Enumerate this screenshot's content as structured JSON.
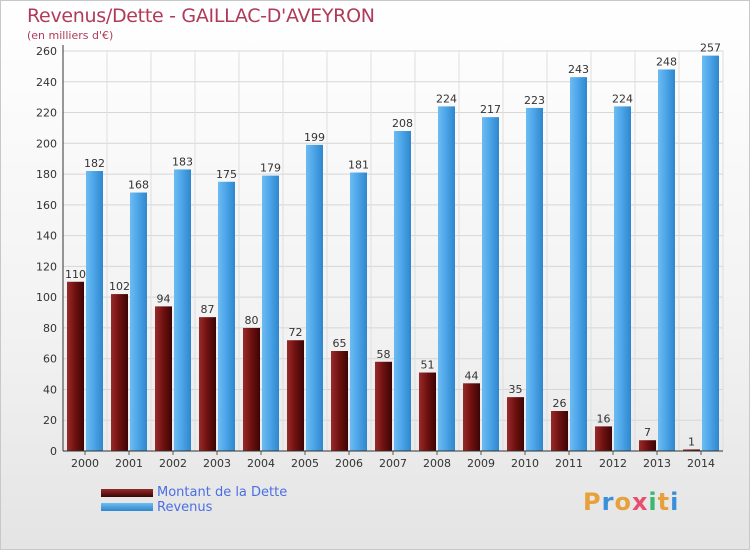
{
  "title": "Revenus/Dette - GAILLAC-D'AVEYRON",
  "subtitle": "(en milliers d'€)",
  "legend": {
    "debt_label": "Montant de la Dette",
    "revenue_label": "Revenus"
  },
  "logo": {
    "letters": [
      "P",
      "r",
      "o",
      "x",
      "i",
      "t",
      "i"
    ],
    "colors": [
      "#e8a13a",
      "#3b8fd9",
      "#e8a13a",
      "#e84f6f",
      "#3bb86f",
      "#e8a13a",
      "#3b8fd9"
    ]
  },
  "colors": {
    "debt": "#7a1010",
    "revenue": "#4aa3e6",
    "title": "#b03a5b",
    "legend_text": "#4a6fe3"
  },
  "chart_data": {
    "type": "bar",
    "title": "Revenus/Dette - GAILLAC-D'AVEYRON",
    "ylabel": "(en milliers d'€)",
    "xlabel": "",
    "ylim": [
      0,
      260
    ],
    "yticks": [
      0,
      20,
      40,
      60,
      80,
      100,
      120,
      140,
      160,
      180,
      200,
      220,
      240,
      260
    ],
    "grid": true,
    "legend_position": "bottom-left",
    "categories": [
      "2000",
      "2001",
      "2002",
      "2003",
      "2004",
      "2005",
      "2006",
      "2007",
      "2008",
      "2009",
      "2010",
      "2011",
      "2012",
      "2013",
      "2014"
    ],
    "series": [
      {
        "name": "Montant de la Dette",
        "values": [
          110,
          102,
          94,
          87,
          80,
          72,
          65,
          58,
          51,
          44,
          35,
          26,
          16,
          7,
          1
        ]
      },
      {
        "name": "Revenus",
        "values": [
          182,
          168,
          183,
          175,
          179,
          199,
          181,
          208,
          224,
          217,
          223,
          243,
          224,
          248,
          257
        ]
      }
    ]
  }
}
